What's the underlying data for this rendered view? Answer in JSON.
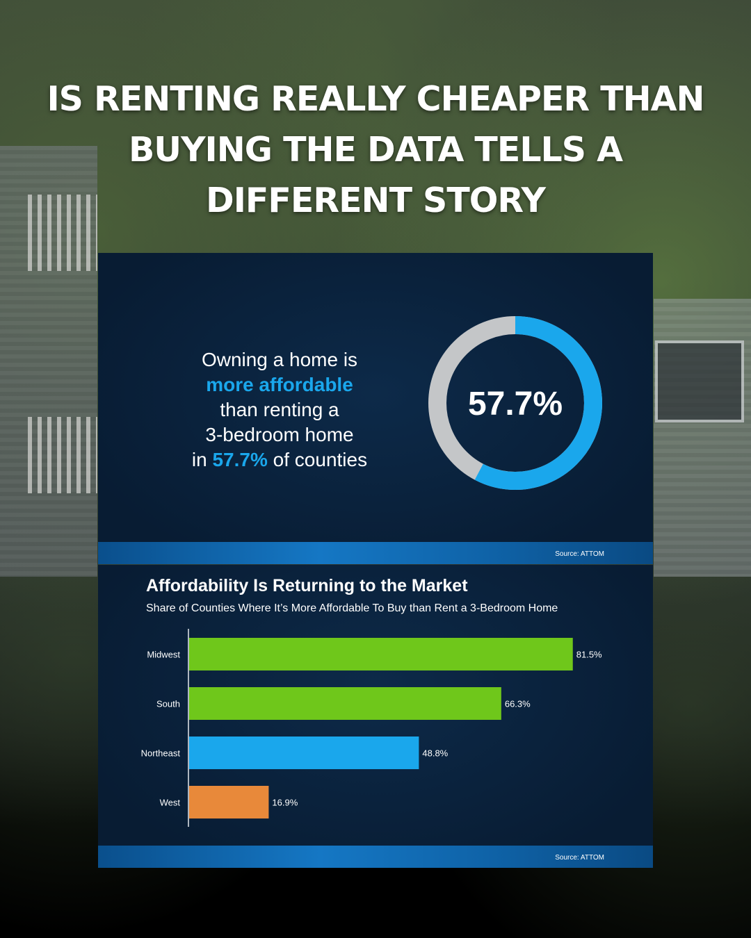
{
  "headline": "IS RENTING REALLY CHEAPER THAN BUYING THE DATA TELLS A DIFFERENT STORY",
  "card1": {
    "line1": "Owning a home is",
    "highlight": "more affordable",
    "line3": "than renting a",
    "line4": "3-bedroom home",
    "line5_pre": "in",
    "line5_value": "57.7%",
    "line5_post": "of counties",
    "donut_label": "57.7%",
    "donut_value": 57.7,
    "source": "Source: ATTOM",
    "colors": {
      "filled": "#1aa7ec",
      "empty": "#c4c6c8"
    }
  },
  "chart_data": {
    "type": "bar",
    "orientation": "horizontal",
    "title": "Affordability Is Returning to the Market",
    "subtitle": "Share of Counties Where It’s More Affordable To Buy than Rent a 3-Bedroom Home",
    "categories": [
      "Midwest",
      "South",
      "Northeast",
      "West"
    ],
    "values": [
      81.5,
      66.3,
      48.8,
      16.9
    ],
    "value_labels": [
      "81.5%",
      "66.3%",
      "48.8%",
      "16.9%"
    ],
    "colors": [
      "#6fc71b",
      "#6fc71b",
      "#1aa7ec",
      "#e8893a"
    ],
    "xlim": [
      0,
      100
    ],
    "grid": false,
    "source": "Source: ATTOM"
  }
}
